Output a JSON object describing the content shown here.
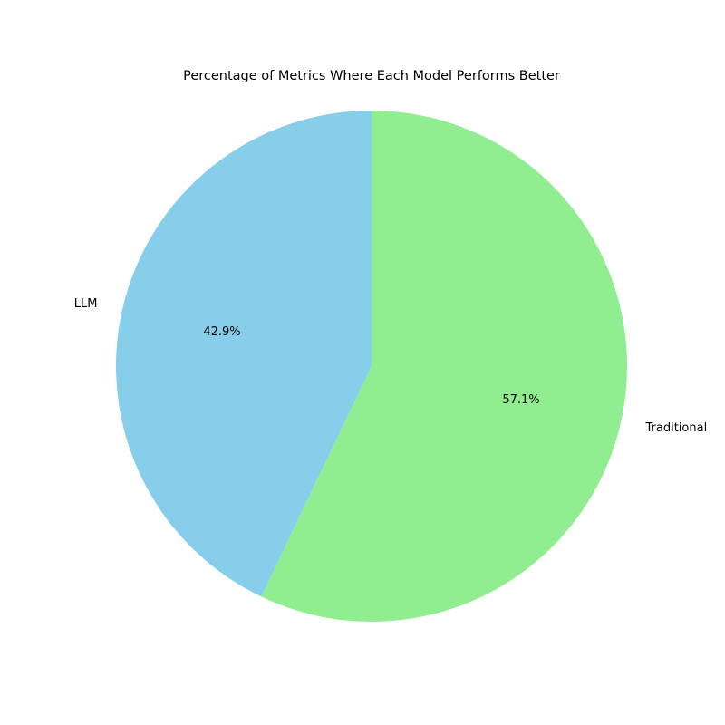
{
  "chart_data": {
    "type": "pie",
    "title": "Percentage of Metrics Where Each Model Performs Better",
    "slices": [
      {
        "label": "LLM",
        "value": 42.9,
        "pct_label": "42.9%",
        "color": "#87ceeb"
      },
      {
        "label": "Traditional",
        "value": 57.1,
        "pct_label": "57.1%",
        "color": "#90ee90"
      }
    ],
    "start_angle_deg": 90,
    "direction": "counterclockwise"
  }
}
